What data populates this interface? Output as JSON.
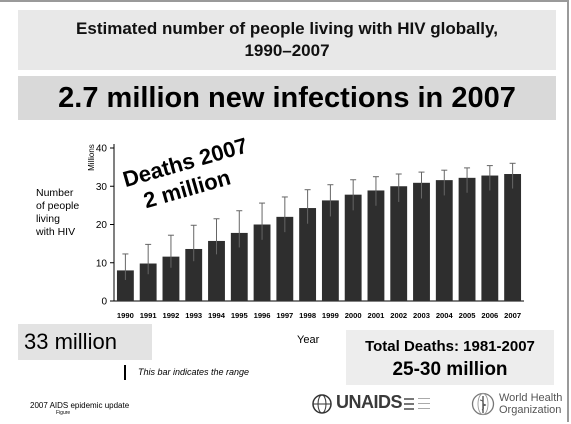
{
  "slide": {
    "title_line1": "Estimated number of people living with HIV globally,",
    "title_line2": "1990–2007",
    "headline": "2.7 million new infections in 2007",
    "y_side_label": [
      "Number",
      "of people",
      "living",
      "with HIV"
    ],
    "deaths_line1": "Deaths 2007",
    "deaths_line2": "2 million",
    "living_total": "33 million",
    "total_deaths_label": "Total Deaths: 1981-2007",
    "total_deaths_value": "25-30 million",
    "range_note": "This bar indicates the range",
    "source_line1": "2007 AIDS epidemic update",
    "source_line2": "Figure",
    "unaids_logo_text": "UNAIDS",
    "who_logo_line1": "World Health",
    "who_logo_line2": "Organization"
  },
  "colors": {
    "bar_fill": "#2e2e2e",
    "error_bar": "#666666",
    "background": "#ffffff"
  },
  "chart_data": {
    "type": "bar",
    "title": "",
    "xlabel": "Year",
    "ylabel": "Millions",
    "ylim": [
      0,
      40
    ],
    "yticks": [
      0,
      10,
      20,
      30,
      40
    ],
    "grid": false,
    "categories": [
      "1990",
      "1991",
      "1992",
      "1993",
      "1994",
      "1995",
      "1996",
      "1997",
      "1998",
      "1999",
      "2000",
      "2001",
      "2002",
      "2003",
      "2004",
      "2005",
      "2006",
      "2007"
    ],
    "values": [
      8.0,
      9.8,
      11.6,
      13.6,
      15.7,
      17.8,
      20.0,
      22.0,
      24.3,
      26.3,
      27.8,
      28.9,
      30.0,
      30.9,
      31.6,
      32.2,
      32.8,
      33.2
    ],
    "range_low": [
      5.5,
      7.0,
      8.7,
      10.4,
      12.2,
      14.0,
      16.0,
      18.0,
      20.2,
      22.1,
      23.7,
      24.9,
      25.9,
      26.8,
      27.6,
      28.3,
      28.9,
      29.4
    ],
    "range_high": [
      12.3,
      14.8,
      17.2,
      19.8,
      21.5,
      23.6,
      25.6,
      27.2,
      29.1,
      30.4,
      31.7,
      32.5,
      33.2,
      33.7,
      34.2,
      34.8,
      35.4,
      36.0
    ]
  }
}
